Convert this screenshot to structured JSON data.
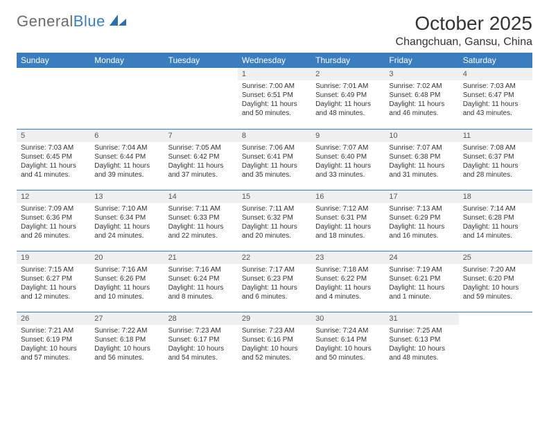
{
  "logo": {
    "part1": "General",
    "part2": "Blue"
  },
  "title": "October 2025",
  "location": "Changchuan, Gansu, China",
  "theme": {
    "header_bg": "#3b7ec0",
    "header_fg": "#ffffff",
    "daynum_bg": "#f0f0f0",
    "row_border": "#3b7ec0",
    "page_bg": "#ffffff",
    "text_color": "#333333"
  },
  "weekdays": [
    "Sunday",
    "Monday",
    "Tuesday",
    "Wednesday",
    "Thursday",
    "Friday",
    "Saturday"
  ],
  "weeks": [
    [
      {
        "blank": true
      },
      {
        "blank": true
      },
      {
        "blank": true
      },
      {
        "n": "1",
        "sr": "7:00 AM",
        "ss": "6:51 PM",
        "dl": "11 hours and 50 minutes."
      },
      {
        "n": "2",
        "sr": "7:01 AM",
        "ss": "6:49 PM",
        "dl": "11 hours and 48 minutes."
      },
      {
        "n": "3",
        "sr": "7:02 AM",
        "ss": "6:48 PM",
        "dl": "11 hours and 46 minutes."
      },
      {
        "n": "4",
        "sr": "7:03 AM",
        "ss": "6:47 PM",
        "dl": "11 hours and 43 minutes."
      }
    ],
    [
      {
        "n": "5",
        "sr": "7:03 AM",
        "ss": "6:45 PM",
        "dl": "11 hours and 41 minutes."
      },
      {
        "n": "6",
        "sr": "7:04 AM",
        "ss": "6:44 PM",
        "dl": "11 hours and 39 minutes."
      },
      {
        "n": "7",
        "sr": "7:05 AM",
        "ss": "6:42 PM",
        "dl": "11 hours and 37 minutes."
      },
      {
        "n": "8",
        "sr": "7:06 AM",
        "ss": "6:41 PM",
        "dl": "11 hours and 35 minutes."
      },
      {
        "n": "9",
        "sr": "7:07 AM",
        "ss": "6:40 PM",
        "dl": "11 hours and 33 minutes."
      },
      {
        "n": "10",
        "sr": "7:07 AM",
        "ss": "6:38 PM",
        "dl": "11 hours and 31 minutes."
      },
      {
        "n": "11",
        "sr": "7:08 AM",
        "ss": "6:37 PM",
        "dl": "11 hours and 28 minutes."
      }
    ],
    [
      {
        "n": "12",
        "sr": "7:09 AM",
        "ss": "6:36 PM",
        "dl": "11 hours and 26 minutes."
      },
      {
        "n": "13",
        "sr": "7:10 AM",
        "ss": "6:34 PM",
        "dl": "11 hours and 24 minutes."
      },
      {
        "n": "14",
        "sr": "7:11 AM",
        "ss": "6:33 PM",
        "dl": "11 hours and 22 minutes."
      },
      {
        "n": "15",
        "sr": "7:11 AM",
        "ss": "6:32 PM",
        "dl": "11 hours and 20 minutes."
      },
      {
        "n": "16",
        "sr": "7:12 AM",
        "ss": "6:31 PM",
        "dl": "11 hours and 18 minutes."
      },
      {
        "n": "17",
        "sr": "7:13 AM",
        "ss": "6:29 PM",
        "dl": "11 hours and 16 minutes."
      },
      {
        "n": "18",
        "sr": "7:14 AM",
        "ss": "6:28 PM",
        "dl": "11 hours and 14 minutes."
      }
    ],
    [
      {
        "n": "19",
        "sr": "7:15 AM",
        "ss": "6:27 PM",
        "dl": "11 hours and 12 minutes."
      },
      {
        "n": "20",
        "sr": "7:16 AM",
        "ss": "6:26 PM",
        "dl": "11 hours and 10 minutes."
      },
      {
        "n": "21",
        "sr": "7:16 AM",
        "ss": "6:24 PM",
        "dl": "11 hours and 8 minutes."
      },
      {
        "n": "22",
        "sr": "7:17 AM",
        "ss": "6:23 PM",
        "dl": "11 hours and 6 minutes."
      },
      {
        "n": "23",
        "sr": "7:18 AM",
        "ss": "6:22 PM",
        "dl": "11 hours and 4 minutes."
      },
      {
        "n": "24",
        "sr": "7:19 AM",
        "ss": "6:21 PM",
        "dl": "11 hours and 1 minute."
      },
      {
        "n": "25",
        "sr": "7:20 AM",
        "ss": "6:20 PM",
        "dl": "10 hours and 59 minutes."
      }
    ],
    [
      {
        "n": "26",
        "sr": "7:21 AM",
        "ss": "6:19 PM",
        "dl": "10 hours and 57 minutes."
      },
      {
        "n": "27",
        "sr": "7:22 AM",
        "ss": "6:18 PM",
        "dl": "10 hours and 56 minutes."
      },
      {
        "n": "28",
        "sr": "7:23 AM",
        "ss": "6:17 PM",
        "dl": "10 hours and 54 minutes."
      },
      {
        "n": "29",
        "sr": "7:23 AM",
        "ss": "6:16 PM",
        "dl": "10 hours and 52 minutes."
      },
      {
        "n": "30",
        "sr": "7:24 AM",
        "ss": "6:14 PM",
        "dl": "10 hours and 50 minutes."
      },
      {
        "n": "31",
        "sr": "7:25 AM",
        "ss": "6:13 PM",
        "dl": "10 hours and 48 minutes."
      },
      {
        "blank": true
      }
    ]
  ],
  "labels": {
    "sunrise": "Sunrise: ",
    "sunset": "Sunset: ",
    "daylight": "Daylight: "
  }
}
